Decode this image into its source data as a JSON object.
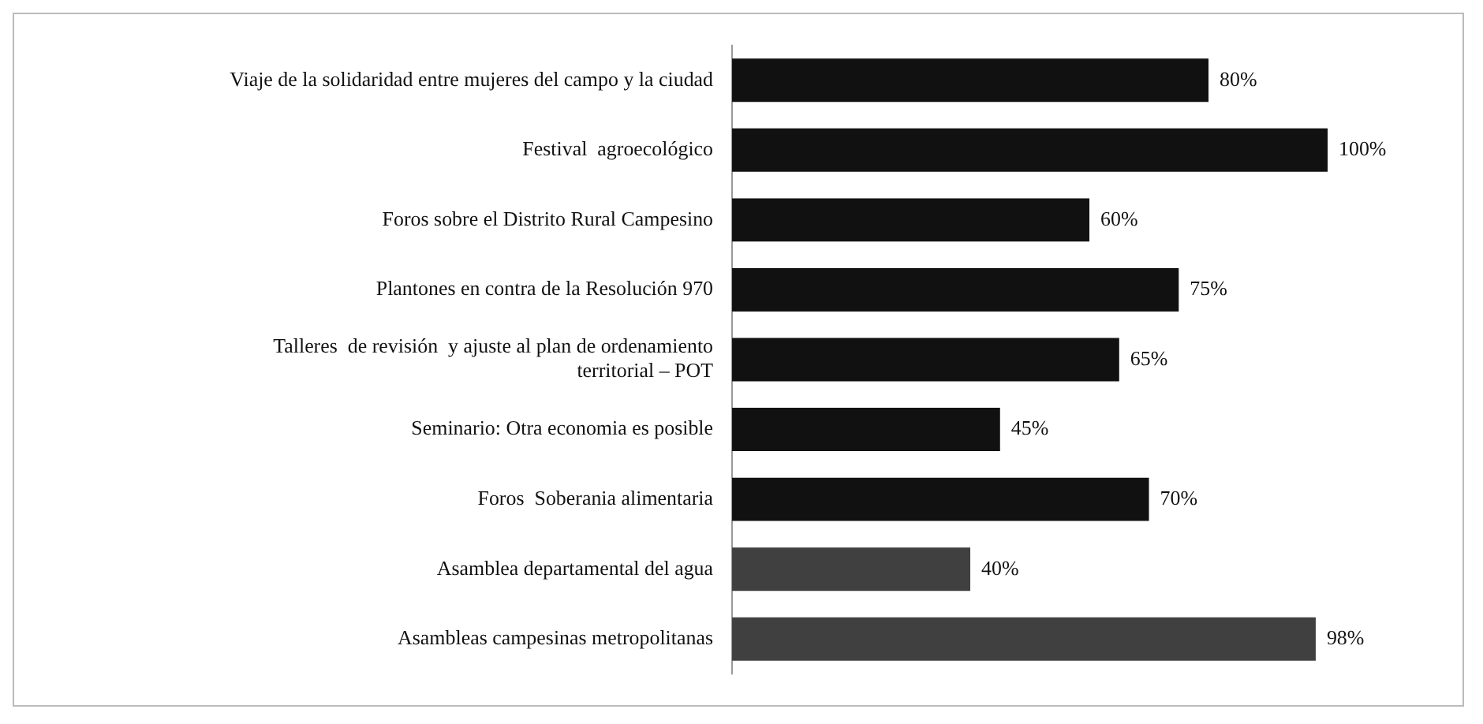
{
  "chart_data": {
    "type": "bar",
    "orientation": "horizontal",
    "categories": [
      "Viaje de la solidaridad entre mujeres del campo y la ciudad",
      "Festival  agroecológico",
      "Foros sobre el Distrito Rural Campesino",
      "Plantones en contra de la Resolución 970",
      "Talleres  de revisión  y ajuste al plan de ordenamiento territorial – POT",
      "Seminario: Otra economia es posible",
      "Foros  Soberania alimentaria",
      "Asamblea departamental del agua",
      "Asambleas campesinas metropolitanas"
    ],
    "values": [
      80,
      100,
      60,
      75,
      65,
      45,
      70,
      40,
      98
    ],
    "colors": [
      "#111111",
      "#111111",
      "#111111",
      "#111111",
      "#111111",
      "#111111",
      "#111111",
      "#404040",
      "#404040"
    ],
    "value_labels": [
      "80%",
      "100%",
      "60%",
      "75%",
      "65%",
      "45%",
      "70%",
      "40%",
      "98%"
    ],
    "grid": false,
    "legend": false
  }
}
